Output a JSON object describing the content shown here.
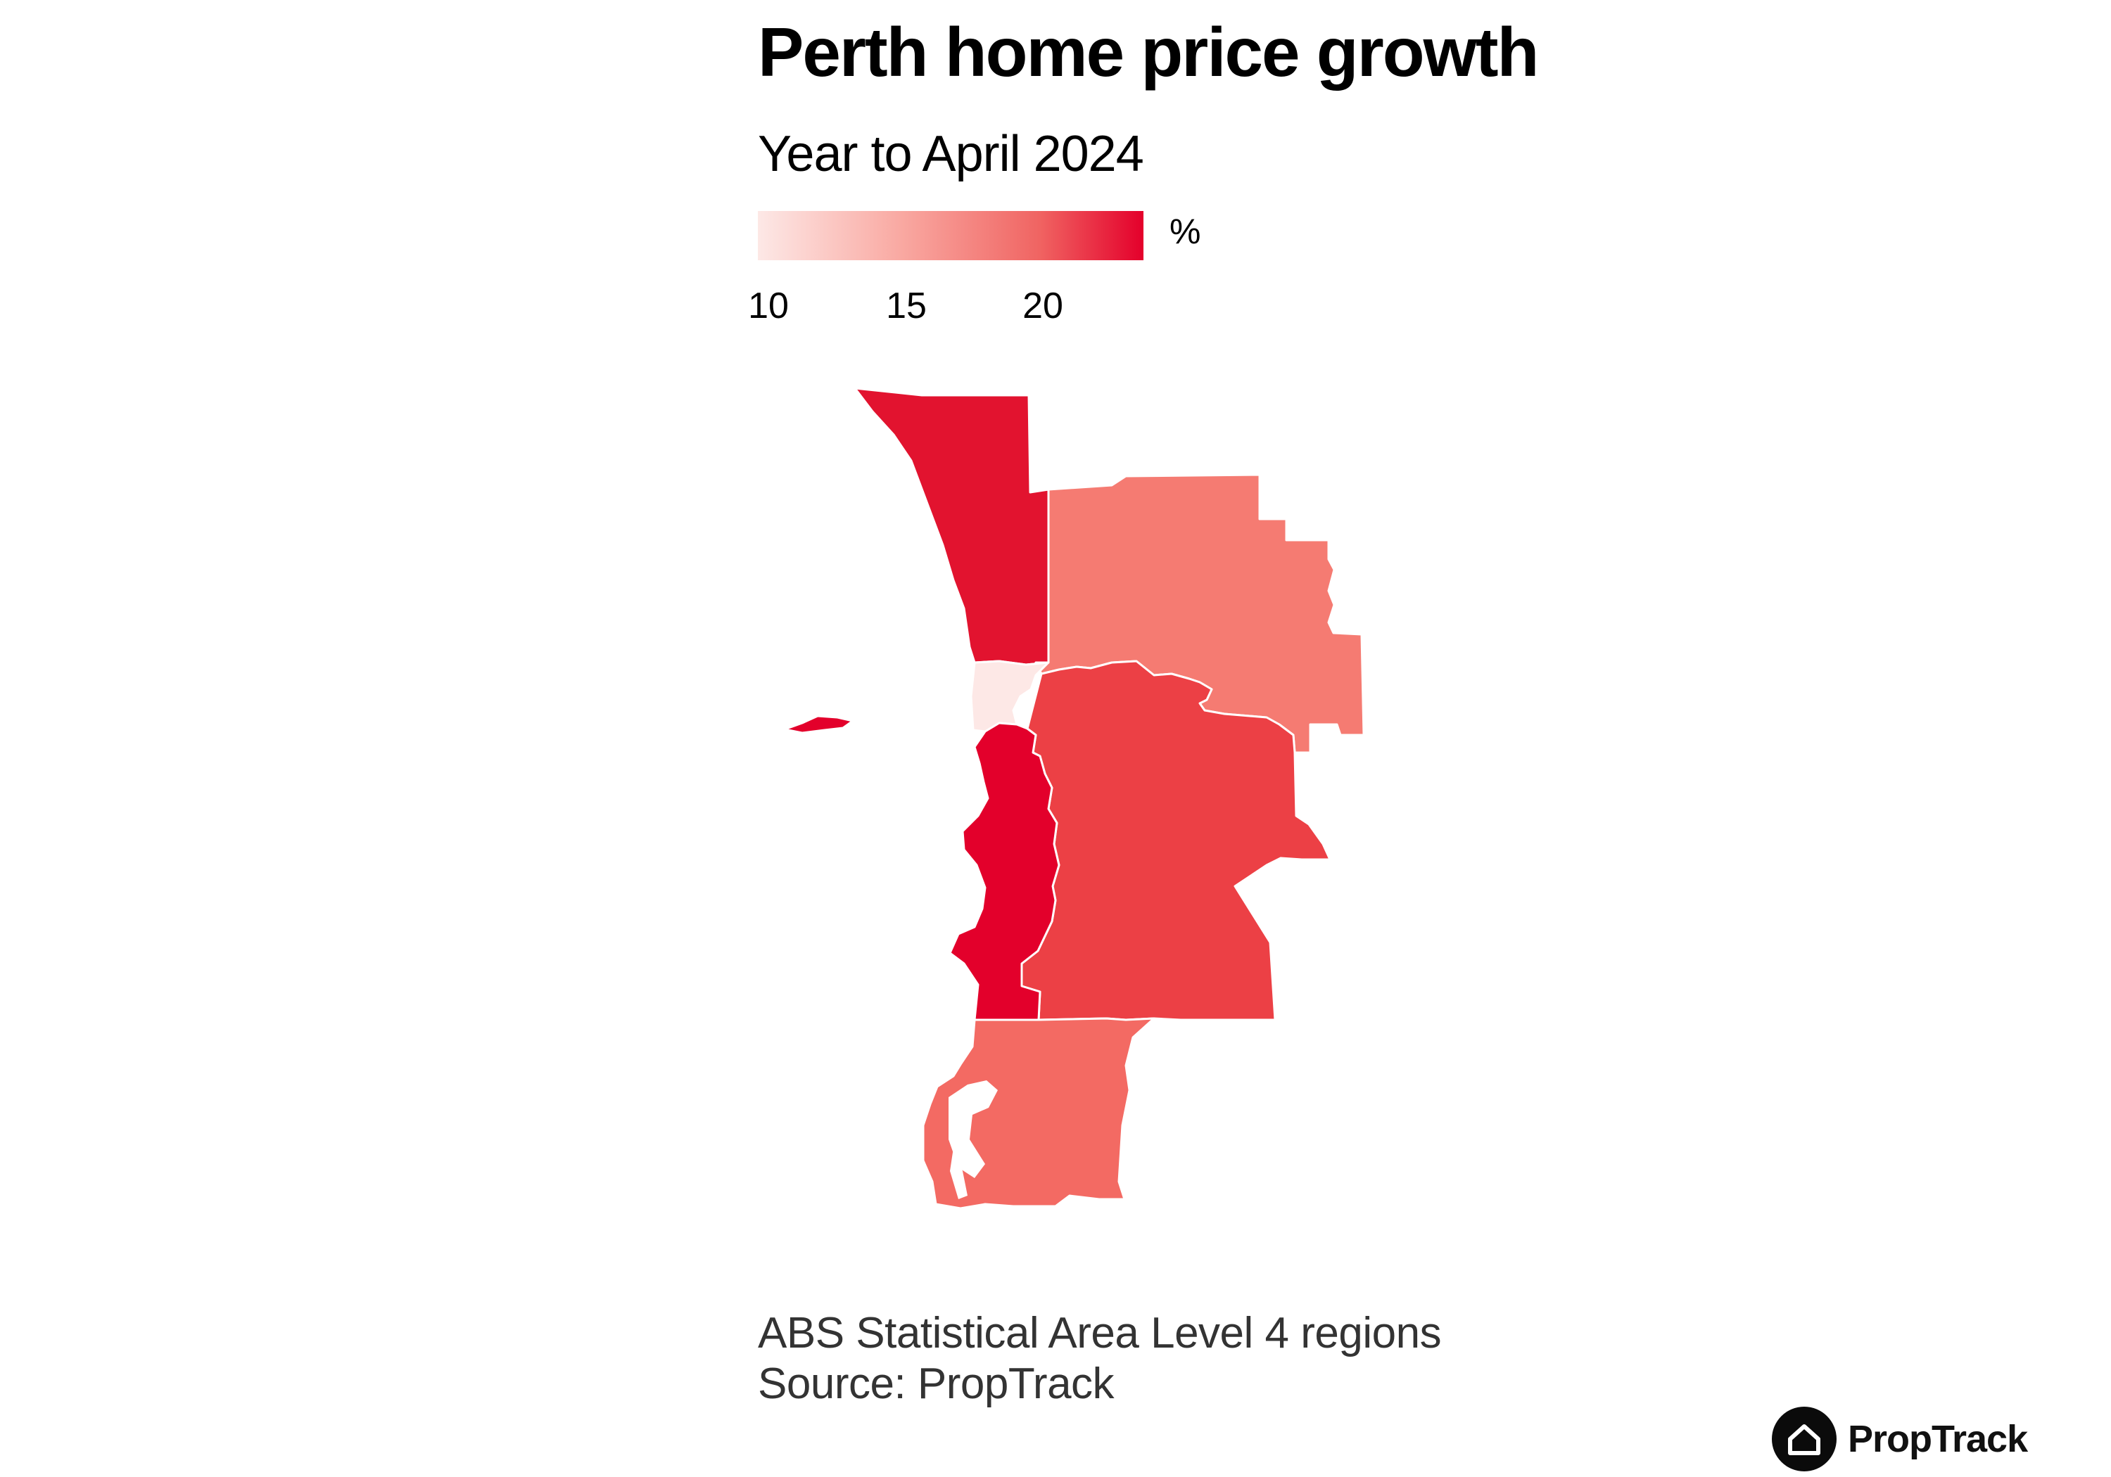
{
  "title": "Perth home price growth",
  "subtitle": "Year to April 2024",
  "legend": {
    "unit": "%",
    "min": 10,
    "max": 23.6,
    "ticks": [
      "10",
      "15",
      "20"
    ],
    "color_low": "#fde8e6",
    "color_high": "#e4002b"
  },
  "chart_data": {
    "type": "choropleth",
    "region_level": "ABS Statistical Area Level 4",
    "regions": [
      {
        "id": "north-coast",
        "growth": 22.5,
        "color": "#e2132f"
      },
      {
        "id": "north-east",
        "growth": 17.5,
        "color": "#f57b72"
      },
      {
        "id": "inner",
        "growth": 10.5,
        "color": "#fde8e6"
      },
      {
        "id": "south-west",
        "growth": 23.5,
        "color": "#e3002b"
      },
      {
        "id": "south-east",
        "growth": 20.5,
        "color": "#ec4045"
      },
      {
        "id": "mandurah",
        "growth": 18.0,
        "color": "#f36a63"
      },
      {
        "id": "rottnest-island",
        "growth": 23.5,
        "color": "#e3002b"
      }
    ]
  },
  "footnotes": {
    "line1": "ABS Statistical Area Level 4 regions",
    "line2": "Source: PropTrack"
  },
  "brand": {
    "name": "PropTrack",
    "icon": "house-icon"
  }
}
